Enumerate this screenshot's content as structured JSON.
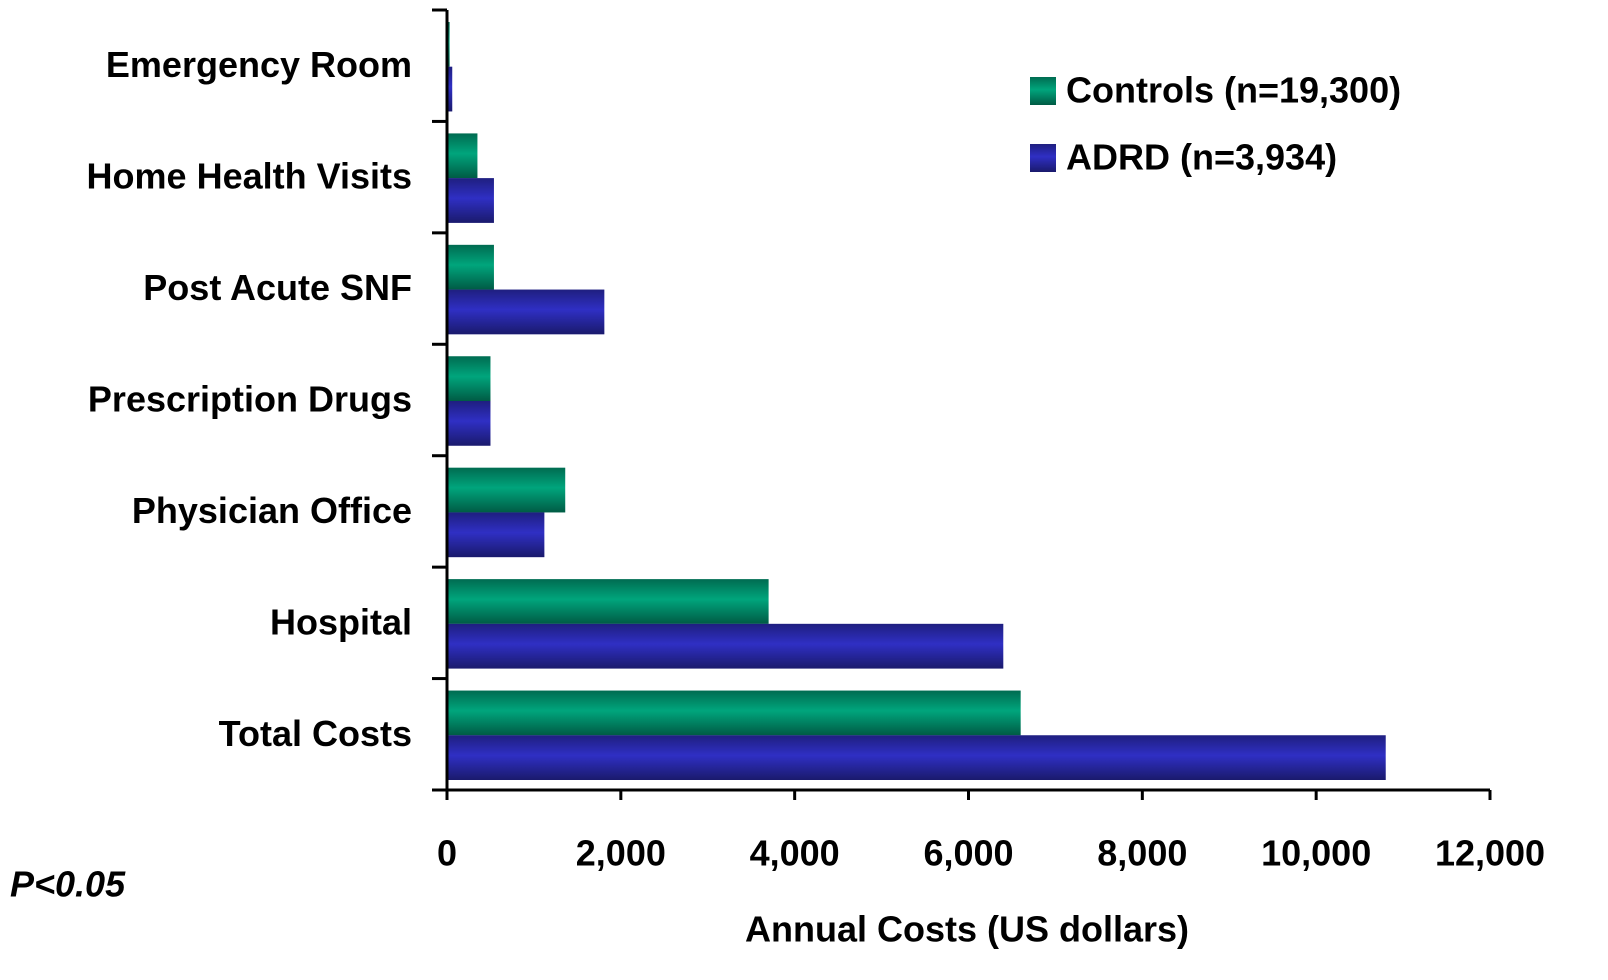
{
  "chart_data": {
    "type": "bar",
    "orientation": "horizontal",
    "categories": [
      "Emergency Room",
      "Home Health Visits",
      "Post Acute SNF",
      "Prescription Drugs",
      "Physician Office",
      "Hospital",
      "Total Costs"
    ],
    "series": [
      {
        "name": "Controls (n=19,300)",
        "color": "#00a57c",
        "values": [
          30,
          350,
          540,
          500,
          1360,
          3700,
          6600
        ]
      },
      {
        "name": "ADRD (n=3,934)",
        "color": "#2f2fc4",
        "values": [
          60,
          540,
          1810,
          500,
          1120,
          6400,
          10800
        ]
      }
    ],
    "xlim": [
      0,
      12000
    ],
    "xticks": [
      0,
      {
        "value": 2000,
        "label": "2,000"
      },
      {
        "value": 4000,
        "label": "4,000"
      },
      {
        "value": 6000,
        "label": "6,000"
      },
      {
        "value": 8000,
        "label": "8,000"
      },
      {
        "value": 10000,
        "label": "10,000"
      },
      {
        "value": 12000,
        "label": "12,000"
      }
    ],
    "xlabel": "Annual Costs (US dollars)",
    "annotation": "P<0.05",
    "legend": "upper right",
    "grid": false
  }
}
